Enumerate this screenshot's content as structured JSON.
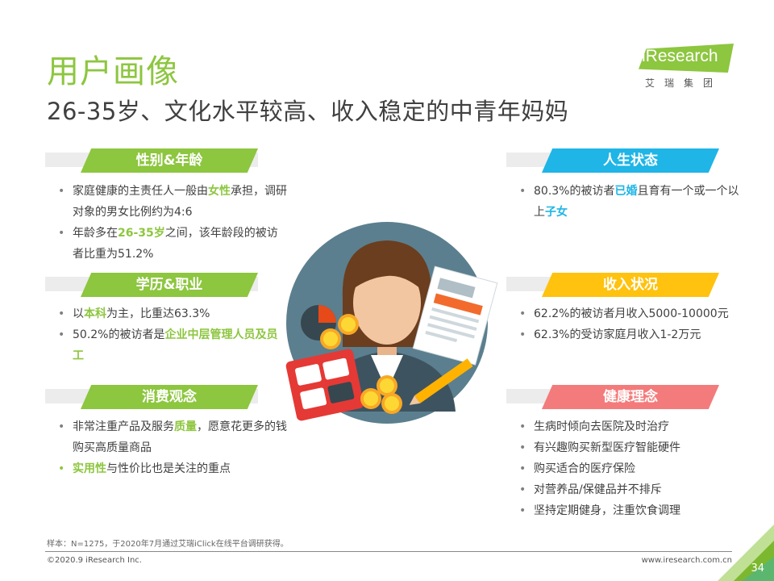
{
  "header": {
    "title": "用户画像",
    "subtitle": "26-35岁、文化水平较高、收入稳定的中青年妈妈"
  },
  "logo": {
    "text": "iResearch",
    "cn": "艾瑞集团"
  },
  "colors": {
    "green": "#8dc63f",
    "blue": "#1fb5e6",
    "yellow": "#ffc20e",
    "pink": "#f47b7b",
    "grey_band": "#ececec"
  },
  "sections": {
    "gender_age": {
      "title": "性别&年龄",
      "b1_pre": "家庭健康的主责任人一般由",
      "b1_hl": "女性",
      "b1_post": "承担，调研对象的男女比例约为4:6",
      "b2_pre": "年龄多在",
      "b2_hl": "26-35岁",
      "b2_post": "之间，该年龄段的被访者比重为51.2%"
    },
    "education": {
      "title": "学历&职业",
      "b1_pre": "以",
      "b1_hl": "本科",
      "b1_post": "为主，比重达63.3%",
      "b2_pre": "50.2%的被访者是",
      "b2_hl": "企业中层管理人员及员工"
    },
    "consumption": {
      "title": "消费观念",
      "b1_pre": "非常注重产品及服务",
      "b1_hl": "质量",
      "b1_post": "，愿意花更多的钱购买高质量商品",
      "b2_hl": "实用性",
      "b2_post": "与性价比也是关注的重点"
    },
    "life": {
      "title": "人生状态",
      "b1_pre": "80.3%的被访者",
      "b1_hl": "已婚",
      "b1_mid": "且育有一个或一个以上",
      "b1_hl2": "子女"
    },
    "income": {
      "title": "收入状况",
      "b1": "62.2%的被访者月收入5000-10000元",
      "b2": "62.3%的受访家庭月收入1-2万元"
    },
    "health": {
      "title": "健康理念",
      "items": [
        "生病时倾向去医院及时治疗",
        "有兴趣购买新型医疗智能硬件",
        "购买适合的医疗保险",
        "对营养品/保健品并不排斥",
        "坚持定期健身，注重饮食调理"
      ]
    }
  },
  "footer": {
    "note": "样本：N=1275，于2020年7月通过艾瑞iClick在线平台调研获得。",
    "copyright": "©2020.9 iResearch Inc.",
    "website": "www.iresearch.com.cn",
    "page": "34"
  }
}
